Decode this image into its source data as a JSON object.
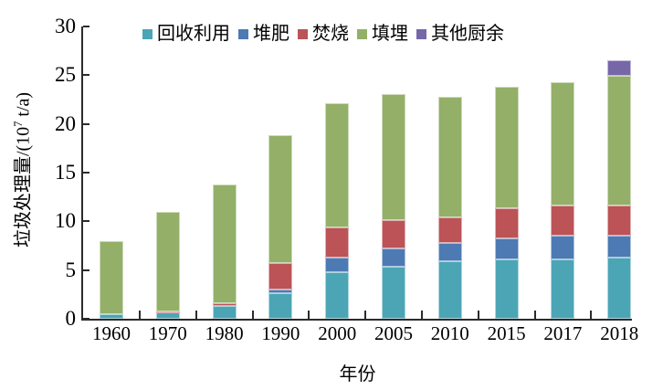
{
  "chart_data": {
    "type": "bar",
    "stacked": true,
    "xlabel": "年份",
    "ylabel": "垃圾处理量/(10⁷ t/a)",
    "ylabel_parts": {
      "prefix": "垃圾处理量/(10",
      "superscript": "7",
      "suffix": " t/a)"
    },
    "categories": [
      "1960",
      "1970",
      "1980",
      "1990",
      "2000",
      "2005",
      "2010",
      "2015",
      "2017",
      "2018"
    ],
    "series": [
      {
        "name": "回收利用",
        "color": "#4ba5b5",
        "values": [
          0.51,
          0.73,
          1.32,
          2.63,
          4.81,
          5.37,
          5.92,
          6.13,
          6.08,
          6.27
        ]
      },
      {
        "name": "堆肥",
        "color": "#4d7ab3",
        "values": [
          0,
          0,
          0,
          0.38,
          1.5,
          1.87,
          1.83,
          2.12,
          2.45,
          2.26
        ]
      },
      {
        "name": "焚烧",
        "color": "#bb5357",
        "values": [
          0,
          0.04,
          0.24,
          2.69,
          3.06,
          2.87,
          2.66,
          3.05,
          3.1,
          3.14
        ]
      },
      {
        "name": "填埋",
        "color": "#93af68",
        "values": [
          7.48,
          10.22,
          12.19,
          13.18,
          12.73,
          12.91,
          12.36,
          12.49,
          12.66,
          13.26
        ]
      },
      {
        "name": "其他厨余",
        "color": "#7667a8",
        "values": [
          0,
          0,
          0,
          0,
          0,
          0,
          0,
          0,
          0,
          1.61
        ]
      }
    ],
    "totals": [
      7.99,
      10.99,
      13.75,
      18.88,
      22.1,
      23.02,
      22.77,
      23.79,
      24.29,
      26.54
    ],
    "ylim": [
      0,
      30
    ],
    "yticks": [
      0,
      5,
      10,
      15,
      20,
      25,
      30
    ],
    "grid": false,
    "legend_position": "top"
  },
  "colors": {
    "axis": "#2b2b2b",
    "text": "#000000",
    "background": "#ffffff"
  }
}
